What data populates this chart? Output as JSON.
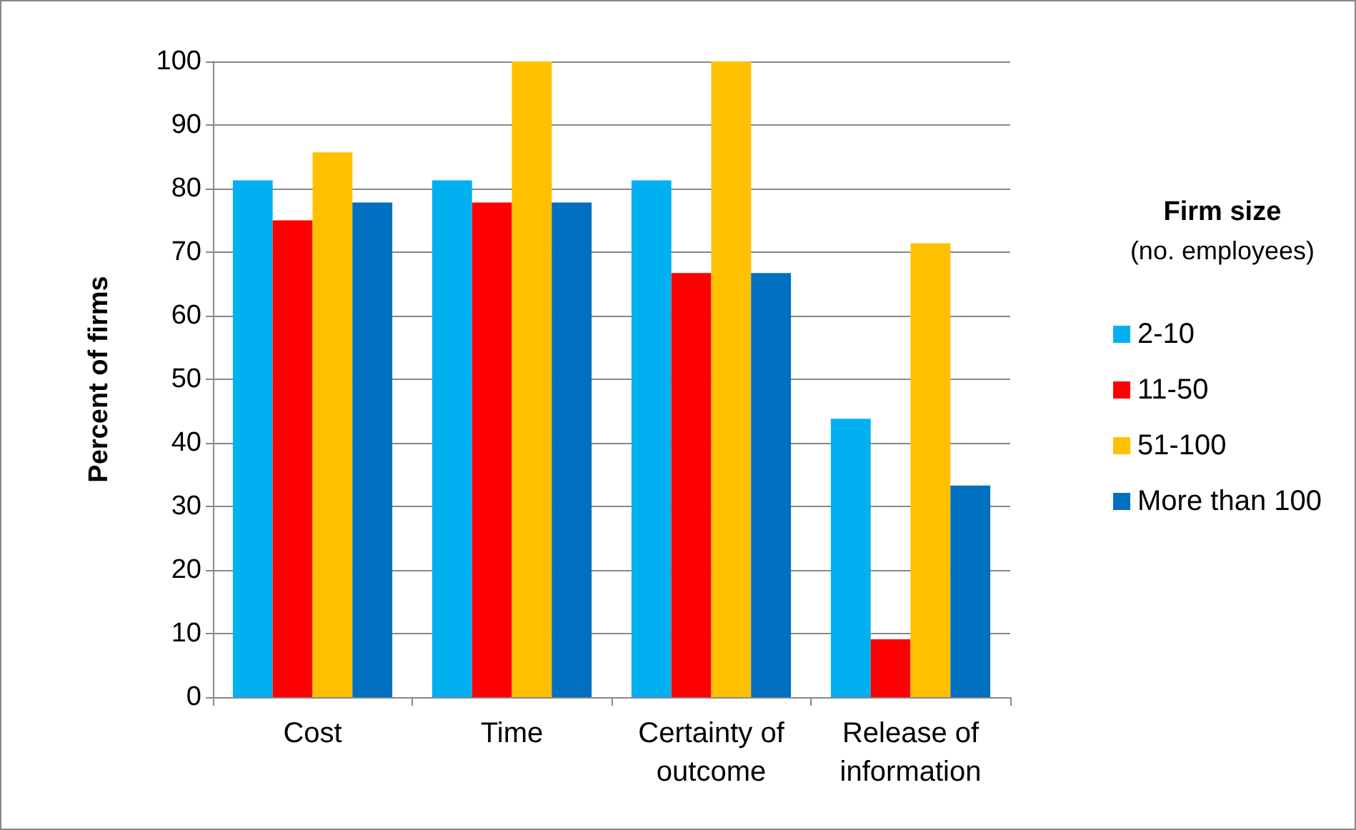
{
  "chart_data": {
    "type": "bar",
    "ylabel": "Percent of firms",
    "legend_title": "Firm size\n(no. employees)",
    "categories": [
      "Cost",
      "Time",
      "Certainty of\noutcome",
      "Release of\ninformation"
    ],
    "series": [
      {
        "name": "2-10",
        "color": "#00b0f0",
        "values": [
          81.3,
          81.3,
          81.3,
          43.8
        ]
      },
      {
        "name": "11-50",
        "color": "#ff0000",
        "values": [
          75,
          77.8,
          66.7,
          9.1
        ]
      },
      {
        "name": "51-100",
        "color": "#ffc000",
        "values": [
          85.7,
          100,
          100,
          71.4
        ]
      },
      {
        "name": "More than 100",
        "color": "#0070c0",
        "values": [
          77.8,
          77.8,
          66.7,
          33.3
        ]
      }
    ],
    "ylim": [
      0,
      100
    ],
    "yticks": [
      0,
      10,
      20,
      30,
      40,
      50,
      60,
      70,
      80,
      90,
      100
    ],
    "grid": "y",
    "legend": "right"
  }
}
